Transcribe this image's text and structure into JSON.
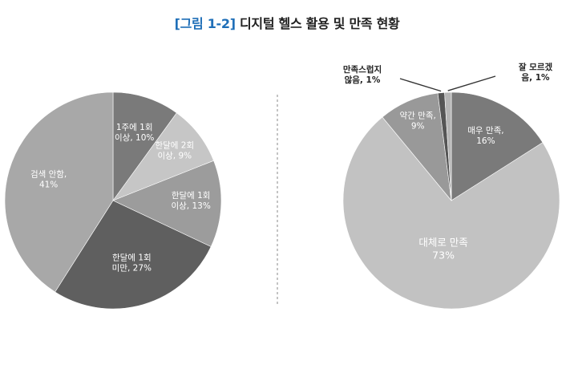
{
  "title": {
    "tag": "[그림 1-2]",
    "text": "디지털 헬스 활용 및 만족 현황"
  },
  "chart_data": [
    {
      "type": "pie",
      "title": "",
      "slices": [
        {
          "label_lines": [
            "1주에 1회",
            "이상, 10%"
          ],
          "value": 10,
          "color": "#7a7a7a",
          "text_color": "#ffffff"
        },
        {
          "label_lines": [
            "한달에 2회",
            "이상, 9%"
          ],
          "value": 9,
          "color": "#c6c6c6",
          "text_color": "#ffffff"
        },
        {
          "label_lines": [
            "한달에 1회",
            "이상, 13%"
          ],
          "value": 13,
          "color": "#9c9c9c",
          "text_color": "#ffffff"
        },
        {
          "label_lines": [
            "한달에 1회",
            "미만, 27%"
          ],
          "value": 27,
          "color": "#5f5f5f",
          "text_color": "#ffffff"
        },
        {
          "label_lines": [
            "검색 안함,",
            "41%"
          ],
          "value": 41,
          "color": "#a8a8a8",
          "text_color": "#ffffff"
        }
      ]
    },
    {
      "type": "pie",
      "title": "",
      "slices": [
        {
          "label_lines": [
            "매우 만족,",
            "16%"
          ],
          "value": 16,
          "color": "#7a7a7a",
          "text_color": "#ffffff"
        },
        {
          "label_lines": [
            "대체로 만족",
            "73%"
          ],
          "value": 73,
          "color": "#c2c2c2",
          "text_color": "#ffffff"
        },
        {
          "label_lines": [
            "약간 만족,",
            "9%"
          ],
          "value": 9,
          "color": "#999999",
          "text_color": "#ffffff"
        },
        {
          "label_lines": [
            "만족스럽지",
            "않음, 1%"
          ],
          "value": 1,
          "color": "#555555",
          "text_color": "#222222",
          "callout": true
        },
        {
          "label_lines": [
            "잘 모르겠",
            "음, 1%"
          ],
          "value": 1,
          "color": "#b5b5b5",
          "text_color": "#222222",
          "callout": true
        }
      ]
    }
  ]
}
